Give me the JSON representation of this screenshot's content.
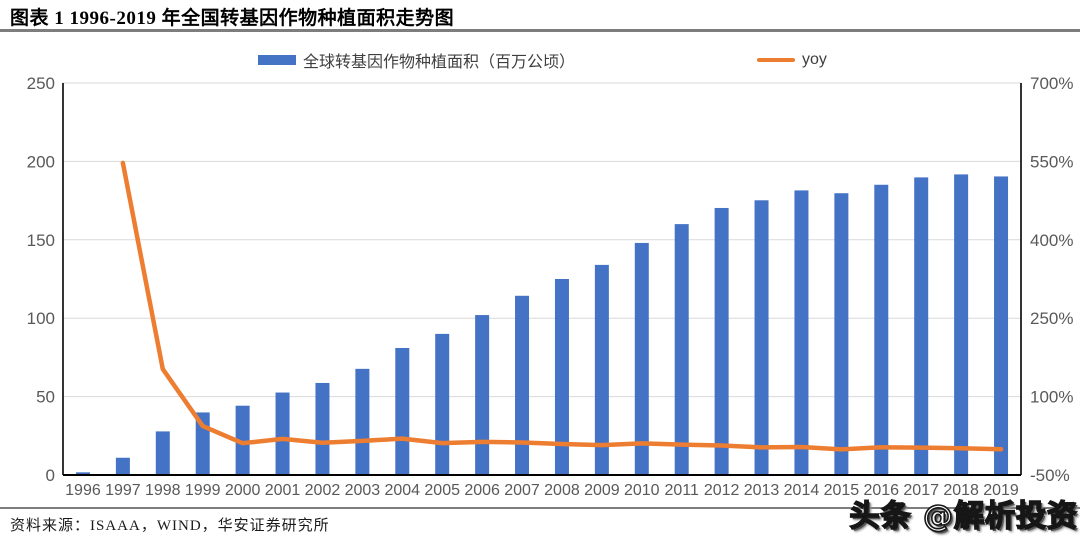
{
  "header": {
    "title": "图表 1 1996-2019 年全国转基因作物种植面积走势图"
  },
  "footer": {
    "source": "资料来源：ISAAA，WIND，华安证券研究所",
    "watermark": "头条 @解析投资"
  },
  "chart_data": {
    "type": "bar",
    "subtype": "bar-and-line-combo",
    "categories": [
      1996,
      1997,
      1998,
      1999,
      2000,
      2001,
      2002,
      2003,
      2004,
      2005,
      2006,
      2007,
      2008,
      2009,
      2010,
      2011,
      2012,
      2013,
      2014,
      2015,
      2016,
      2017,
      2018,
      2019
    ],
    "series": [
      {
        "name": "全球转基因作物种植面积（百万公顷）",
        "type": "bar",
        "axis": "left",
        "color": "#4472C4",
        "values": [
          1.7,
          11.0,
          27.8,
          39.9,
          44.2,
          52.6,
          58.7,
          67.7,
          81.0,
          90.0,
          102.0,
          114.3,
          125.0,
          134.0,
          148.0,
          160.0,
          170.3,
          175.2,
          181.5,
          179.7,
          185.1,
          189.8,
          191.7,
          190.4
        ]
      },
      {
        "name": "yoy",
        "type": "line",
        "axis": "right",
        "color": "#ED7D31",
        "values": [
          null,
          547.1,
          152.7,
          43.5,
          10.8,
          19.0,
          11.6,
          15.3,
          19.6,
          11.1,
          13.3,
          12.1,
          9.4,
          7.2,
          10.4,
          8.1,
          6.4,
          2.9,
          3.6,
          -1.0,
          3.0,
          2.5,
          1.0,
          -0.7
        ]
      }
    ],
    "left_axis": {
      "min": 0,
      "max": 250,
      "tick_values": [
        0,
        50,
        100,
        150,
        200,
        250
      ],
      "tick_labels": [
        "0",
        "50",
        "100",
        "150",
        "200",
        "250"
      ]
    },
    "right_axis": {
      "min": -50,
      "max": 700,
      "tick_values": [
        -50,
        100,
        250,
        400,
        550,
        700
      ],
      "tick_labels": [
        "-50%",
        "100%",
        "250%",
        "400%",
        "550%",
        "700%"
      ]
    },
    "legend_position": "top",
    "grid": true,
    "tick_color": "#595959",
    "gridline_color": "#D9D9D9",
    "axis_line_color": "#000000"
  }
}
